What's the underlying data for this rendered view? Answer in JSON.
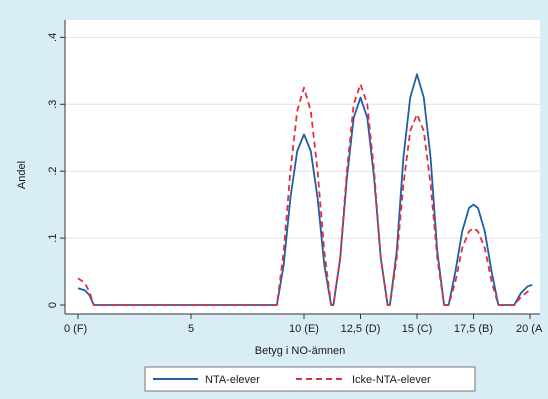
{
  "chart_data": {
    "type": "line",
    "xlabel": "Betyg i NO-ämnen",
    "ylabel": "Andel",
    "xlim": [
      0,
      20
    ],
    "ylim": [
      0,
      0.42
    ],
    "x_ticks": [
      {
        "value": 0,
        "label": "0 (F)"
      },
      {
        "value": 5,
        "label": "5"
      },
      {
        "value": 10,
        "label": "10 (E)"
      },
      {
        "value": 12.5,
        "label": "12,5 (D)"
      },
      {
        "value": 15,
        "label": "15 (C)"
      },
      {
        "value": 17.5,
        "label": "17,5 (B)"
      },
      {
        "value": 20,
        "label": "20 (A"
      }
    ],
    "y_ticks": [
      {
        "value": 0,
        "label": "0"
      },
      {
        "value": 0.1,
        "label": ".1"
      },
      {
        "value": 0.2,
        "label": ".2"
      },
      {
        "value": 0.3,
        "label": ".3"
      },
      {
        "value": 0.4,
        "label": ".4"
      }
    ],
    "grid": "horizontal",
    "legend_position": "bottom",
    "series": [
      {
        "name": "NTA-elever",
        "color": "#1f5fa6",
        "dash": "solid",
        "points": [
          [
            0,
            0.025
          ],
          [
            0.3,
            0.022
          ],
          [
            0.5,
            0.015
          ],
          [
            0.7,
            0.0
          ],
          [
            8.8,
            0.0
          ],
          [
            9.1,
            0.06
          ],
          [
            9.4,
            0.16
          ],
          [
            9.7,
            0.23
          ],
          [
            10.0,
            0.255
          ],
          [
            10.3,
            0.23
          ],
          [
            10.6,
            0.16
          ],
          [
            10.9,
            0.06
          ],
          [
            11.2,
            0.0
          ],
          [
            11.3,
            0.0
          ],
          [
            11.6,
            0.07
          ],
          [
            11.9,
            0.19
          ],
          [
            12.2,
            0.28
          ],
          [
            12.5,
            0.31
          ],
          [
            12.8,
            0.28
          ],
          [
            13.1,
            0.19
          ],
          [
            13.4,
            0.07
          ],
          [
            13.7,
            0.0
          ],
          [
            13.8,
            0.0
          ],
          [
            14.1,
            0.08
          ],
          [
            14.4,
            0.22
          ],
          [
            14.7,
            0.31
          ],
          [
            15.0,
            0.345
          ],
          [
            15.3,
            0.31
          ],
          [
            15.6,
            0.22
          ],
          [
            15.9,
            0.08
          ],
          [
            16.2,
            0.0
          ],
          [
            16.4,
            0.0
          ],
          [
            16.7,
            0.05
          ],
          [
            17.0,
            0.11
          ],
          [
            17.3,
            0.145
          ],
          [
            17.5,
            0.15
          ],
          [
            17.7,
            0.145
          ],
          [
            18.0,
            0.11
          ],
          [
            18.3,
            0.05
          ],
          [
            18.6,
            0.0
          ],
          [
            19.3,
            0.0
          ],
          [
            19.6,
            0.018
          ],
          [
            19.9,
            0.028
          ],
          [
            20.1,
            0.03
          ]
        ]
      },
      {
        "name": "Icke-NTA-elever",
        "color": "#e0303a",
        "dash": "dashed",
        "points": [
          [
            0,
            0.04
          ],
          [
            0.3,
            0.033
          ],
          [
            0.5,
            0.02
          ],
          [
            0.7,
            0.0
          ],
          [
            8.8,
            0.0
          ],
          [
            9.1,
            0.08
          ],
          [
            9.4,
            0.2
          ],
          [
            9.7,
            0.29
          ],
          [
            10.0,
            0.325
          ],
          [
            10.3,
            0.29
          ],
          [
            10.6,
            0.2
          ],
          [
            10.9,
            0.08
          ],
          [
            11.2,
            0.0
          ],
          [
            11.3,
            0.0
          ],
          [
            11.6,
            0.07
          ],
          [
            11.9,
            0.2
          ],
          [
            12.2,
            0.3
          ],
          [
            12.5,
            0.33
          ],
          [
            12.8,
            0.3
          ],
          [
            13.1,
            0.2
          ],
          [
            13.4,
            0.07
          ],
          [
            13.7,
            0.0
          ],
          [
            13.8,
            0.0
          ],
          [
            14.1,
            0.07
          ],
          [
            14.4,
            0.18
          ],
          [
            14.7,
            0.26
          ],
          [
            15.0,
            0.285
          ],
          [
            15.3,
            0.26
          ],
          [
            15.6,
            0.18
          ],
          [
            15.9,
            0.07
          ],
          [
            16.2,
            0.0
          ],
          [
            16.4,
            0.0
          ],
          [
            16.7,
            0.035
          ],
          [
            17.0,
            0.085
          ],
          [
            17.3,
            0.11
          ],
          [
            17.5,
            0.115
          ],
          [
            17.7,
            0.11
          ],
          [
            18.0,
            0.085
          ],
          [
            18.3,
            0.035
          ],
          [
            18.6,
            0.0
          ],
          [
            19.3,
            0.0
          ],
          [
            19.6,
            0.012
          ],
          [
            19.9,
            0.02
          ],
          [
            20.1,
            0.022
          ]
        ]
      }
    ]
  }
}
